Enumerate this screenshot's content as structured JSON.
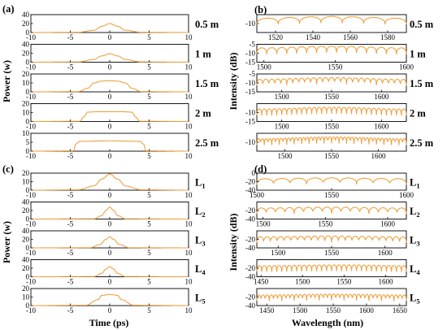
{
  "colors": {
    "trace": "#f0a040"
  },
  "labels": {
    "a": "(a)",
    "b": "(b)",
    "c": "(c)",
    "d": "(d)",
    "power": "Power (w)",
    "intensity": "Intensity (dB)",
    "time": "Time (ps)",
    "wavelength": "Wavelength (nm)"
  },
  "chart_data": [
    {
      "panel": "(a)",
      "type": "line",
      "xlabel": "",
      "ylabel": "Power (w)",
      "subplots": [
        {
          "label": "0.5 m",
          "xlim": [
            -10,
            10
          ],
          "ylim": [
            0,
            40
          ],
          "xticks": [
            -10,
            -5,
            0,
            5,
            10
          ],
          "yticks": [
            0,
            20,
            40
          ],
          "x": [
            -10,
            -4,
            -2,
            -1,
            0,
            1,
            2,
            4,
            10
          ],
          "y": [
            0,
            0.5,
            5,
            14,
            20,
            14,
            5,
            0.5,
            0
          ]
        },
        {
          "label": "1 m",
          "xlim": [
            -10,
            10
          ],
          "ylim": [
            0,
            40
          ],
          "xticks": [
            -10,
            -5,
            0,
            5,
            10
          ],
          "yticks": [
            0,
            20,
            40
          ],
          "x": [
            -10,
            -4,
            -2,
            -1,
            0,
            1,
            2,
            4,
            10
          ],
          "y": [
            0,
            0.5,
            6,
            14,
            19,
            14,
            6,
            0.5,
            0
          ]
        },
        {
          "label": "1.5 m",
          "xlim": [
            -10,
            10
          ],
          "ylim": [
            0,
            20
          ],
          "xticks": [
            -10,
            -5,
            0,
            5,
            10
          ],
          "yticks": [
            0,
            10,
            20
          ],
          "x": [
            -10,
            -4,
            -2.8,
            -2,
            -1,
            0,
            1,
            2,
            2.8,
            4,
            10
          ],
          "y": [
            0,
            0.3,
            4,
            10,
            12,
            12.5,
            12,
            10,
            4,
            0.3,
            0
          ]
        },
        {
          "label": "2 m",
          "xlim": [
            -10,
            10
          ],
          "ylim": [
            0,
            20
          ],
          "xticks": [
            -10,
            -5,
            0,
            5,
            10
          ],
          "yticks": [
            0,
            10,
            20
          ],
          "x": [
            -10,
            -3.8,
            -3.3,
            -2.8,
            -1.5,
            0,
            1.5,
            2.8,
            3.3,
            3.8,
            10
          ],
          "y": [
            0,
            0.3,
            5,
            10.5,
            11,
            11,
            11,
            10.5,
            5,
            0.3,
            0
          ]
        },
        {
          "label": "2.5 m",
          "xlim": [
            -10,
            10
          ],
          "ylim": [
            0,
            10
          ],
          "xticks": [
            -10,
            -5,
            0,
            5,
            10
          ],
          "yticks": [
            0,
            5,
            10
          ],
          "x": [
            -10,
            -4.6,
            -4.3,
            -3.8,
            0,
            3.8,
            4.3,
            4.6,
            10
          ],
          "y": [
            0,
            0.2,
            4,
            5.5,
            5.8,
            5.5,
            4,
            0.2,
            0
          ]
        }
      ]
    },
    {
      "panel": "(b)",
      "type": "line",
      "xlabel": "",
      "ylabel": "Intensity (dB)",
      "subplots": [
        {
          "label": "0.5 m",
          "xlim": [
            1510,
            1590
          ],
          "ylim": [
            -15,
            -5
          ],
          "xticks": [
            1520,
            1540,
            1560,
            1580
          ],
          "yticks": [
            -10
          ],
          "x": [
            1510,
            1550,
            1590
          ],
          "y": [
            -7,
            -6,
            -7
          ],
          "fringes": 7
        },
        {
          "label": "1 m",
          "xlim": [
            1495,
            1600
          ],
          "ylim": [
            -15,
            -5
          ],
          "xticks": [
            1500,
            1550,
            1600
          ],
          "yticks": [
            -15,
            -10,
            -5
          ],
          "x": [
            1495,
            1550,
            1600
          ],
          "y": [
            -7,
            -6,
            -7
          ],
          "fringes": 15
        },
        {
          "label": "1.5 m",
          "xlim": [
            1475,
            1625
          ],
          "ylim": [
            -15,
            -5
          ],
          "xticks": [
            1500,
            1550,
            1600
          ],
          "yticks": [
            -15,
            -10,
            -5
          ],
          "x": [
            1475,
            1550,
            1625
          ],
          "y": [
            -8,
            -7,
            -8
          ],
          "fringes": 25
        },
        {
          "label": "2 m",
          "xlim": [
            1475,
            1625
          ],
          "ylim": [
            -15,
            -5
          ],
          "xticks": [
            1500,
            1550,
            1600
          ],
          "yticks": [
            -15,
            -10
          ],
          "x": [
            1475,
            1550,
            1625
          ],
          "y": [
            -8,
            -7,
            -8
          ],
          "fringes": 30
        },
        {
          "label": "2.5 m",
          "xlim": [
            1470,
            1630
          ],
          "ylim": [
            -15,
            -5
          ],
          "xticks": [
            1500,
            1550,
            1600
          ],
          "yticks": [
            -10
          ],
          "x": [
            1470,
            1550,
            1630
          ],
          "y": [
            -8,
            -7,
            -8
          ],
          "fringes": 40
        }
      ]
    },
    {
      "panel": "(c)",
      "type": "line",
      "xlabel": "Time (ps)",
      "ylabel": "Power (w)",
      "subplots": [
        {
          "label": "L1",
          "xlim": [
            -10,
            10
          ],
          "ylim": [
            0,
            20
          ],
          "xticks": [
            -10,
            -5,
            0,
            5,
            10
          ],
          "yticks": [
            0,
            10,
            20
          ],
          "x": [
            -10,
            -4,
            -2,
            -1,
            0,
            1,
            2,
            4,
            10
          ],
          "y": [
            0,
            0.5,
            5,
            13,
            19,
            13,
            5,
            0.5,
            0
          ]
        },
        {
          "label": "L2",
          "xlim": [
            -10,
            10
          ],
          "ylim": [
            0,
            40
          ],
          "xticks": [
            -10,
            -5,
            0,
            5,
            10
          ],
          "yticks": [
            0,
            20,
            40
          ],
          "x": [
            -10,
            -2,
            -1,
            -0.5,
            0,
            0.5,
            1,
            2,
            10
          ],
          "y": [
            0,
            0.5,
            8,
            20,
            28,
            20,
            8,
            0.5,
            0
          ]
        },
        {
          "label": "L3",
          "xlim": [
            -10,
            10
          ],
          "ylim": [
            0,
            40
          ],
          "xticks": [
            -10,
            -5,
            0,
            5,
            10
          ],
          "yticks": [
            0,
            20,
            40
          ],
          "x": [
            -10,
            -2.5,
            -1.2,
            -0.5,
            0,
            0.5,
            1.2,
            2.5,
            10
          ],
          "y": [
            0,
            0.5,
            8,
            20,
            26,
            20,
            8,
            0.5,
            0
          ]
        },
        {
          "label": "L4",
          "xlim": [
            -10,
            10
          ],
          "ylim": [
            0,
            40
          ],
          "xticks": [
            -10,
            -5,
            0,
            5,
            10
          ],
          "yticks": [
            0,
            20,
            40
          ],
          "x": [
            -10,
            -2,
            -1,
            -0.5,
            0,
            0.5,
            1,
            2,
            10
          ],
          "y": [
            0,
            0.5,
            8,
            18,
            24,
            18,
            8,
            0.5,
            0
          ]
        },
        {
          "label": "L5",
          "xlim": [
            -10,
            10
          ],
          "ylim": [
            0,
            20
          ],
          "xticks": [
            -10,
            -5,
            0,
            5,
            10
          ],
          "yticks": [
            0,
            10,
            20
          ],
          "x": [
            -10,
            -3,
            -1.5,
            -1,
            0,
            1,
            1.5,
            3,
            10
          ],
          "y": [
            0,
            0.5,
            7,
            12,
            13,
            12,
            7,
            0.5,
            0
          ]
        }
      ]
    },
    {
      "panel": "(d)",
      "type": "line",
      "xlabel": "Wavelength (nm)",
      "ylabel": "Intensity (dB)",
      "subplots": [
        {
          "label": "L1",
          "xlim": [
            1500,
            1600
          ],
          "ylim": [
            -40,
            0
          ],
          "xticks": [
            1500,
            1550,
            1600
          ],
          "yticks": [
            -40,
            -20,
            0
          ],
          "x": [
            1500,
            1550,
            1600
          ],
          "y": [
            -13,
            -11,
            -13
          ],
          "fringes": 9
        },
        {
          "label": "L2",
          "xlim": [
            1495,
            1615
          ],
          "ylim": [
            -40,
            0
          ],
          "xticks": [
            1500,
            1550,
            1600
          ],
          "yticks": [
            -40,
            -20
          ],
          "x": [
            1495,
            1555,
            1615
          ],
          "y": [
            -14,
            -12,
            -14
          ],
          "fringes": 16
        },
        {
          "label": "L3",
          "xlim": [
            1480,
            1620
          ],
          "ylim": [
            -40,
            0
          ],
          "xticks": [
            1500,
            1550,
            1600
          ],
          "yticks": [
            -40,
            -20
          ],
          "x": [
            1480,
            1550,
            1620
          ],
          "y": [
            -14,
            -12,
            -14
          ],
          "fringes": 22
        },
        {
          "label": "L4",
          "xlim": [
            1445,
            1625
          ],
          "ylim": [
            -40,
            0
          ],
          "xticks": [
            1450,
            1500,
            1550,
            1600
          ],
          "yticks": [
            -40,
            -20
          ],
          "x": [
            1445,
            1550,
            1625
          ],
          "y": [
            -14,
            -12,
            -14
          ],
          "fringes": 30
        },
        {
          "label": "L5",
          "xlim": [
            1435,
            1660
          ],
          "ylim": [
            -40,
            0
          ],
          "xticks": [
            1450,
            1500,
            1550,
            1600,
            1650
          ],
          "yticks": [
            -40,
            -20
          ],
          "x": [
            1435,
            1550,
            1660
          ],
          "y": [
            -15,
            -13,
            -15
          ],
          "fringes": 36
        }
      ]
    }
  ]
}
